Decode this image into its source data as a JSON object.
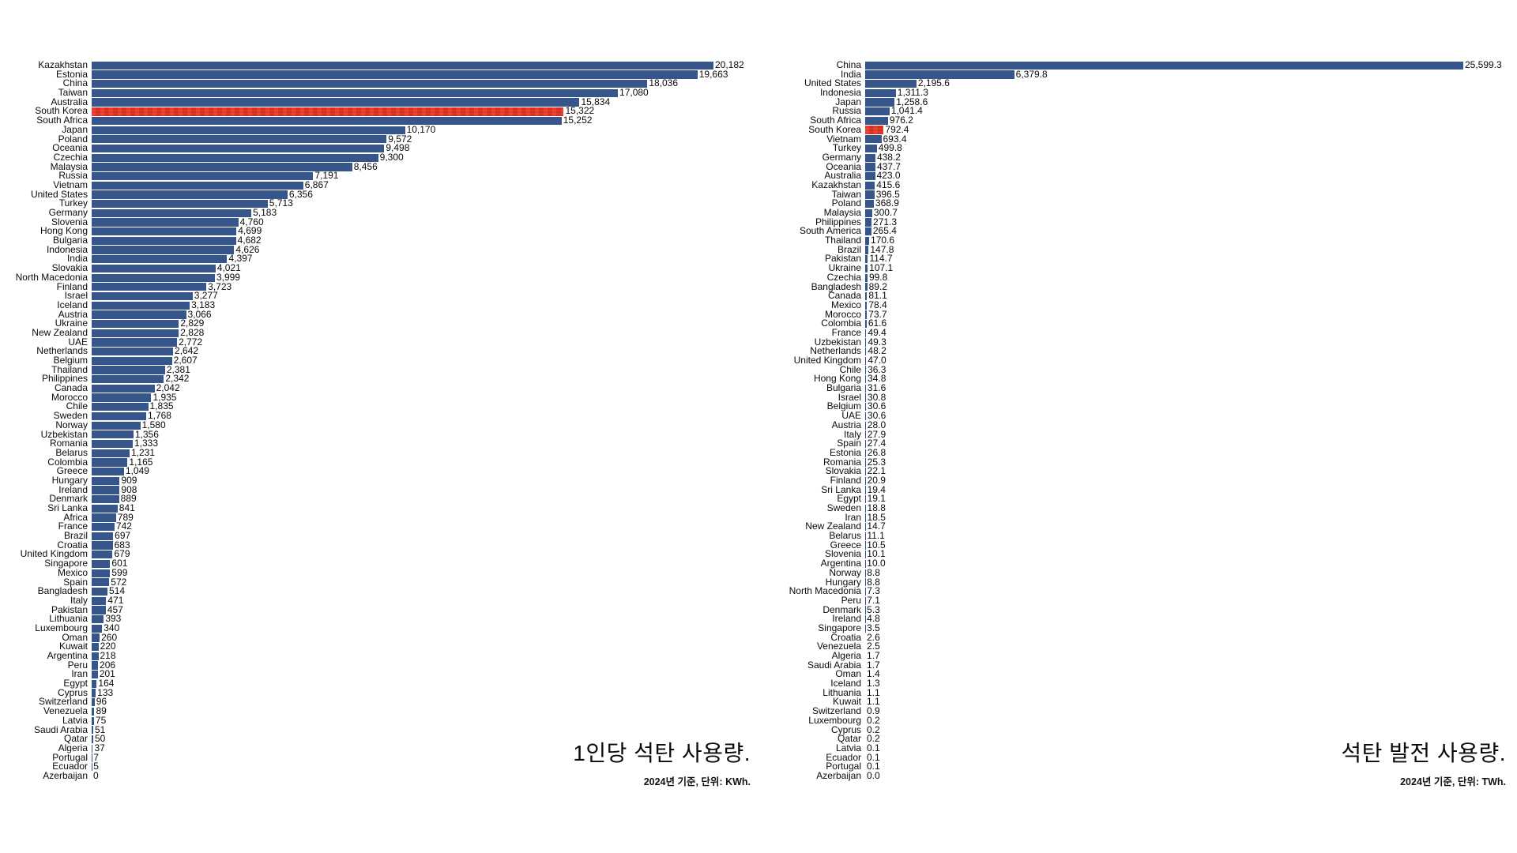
{
  "chart_data": [
    {
      "type": "bar",
      "orientation": "horizontal",
      "title": "1인당 석탄 사용량.",
      "subtitle": "2024년 기준, 단위: KWh.",
      "unit": "KWh",
      "xlim": [
        0,
        20182
      ],
      "grid": false,
      "legend": "none",
      "bar_color": "#36568b",
      "highlight": "South Korea",
      "highlight_color": "#de3a2b",
      "categories": [
        "Kazakhstan",
        "Estonia",
        "China",
        "Taiwan",
        "Australia",
        "South Korea",
        "South Africa",
        "Japan",
        "Poland",
        "Oceania",
        "Czechia",
        "Malaysia",
        "Russia",
        "Vietnam",
        "United States",
        "Turkey",
        "Germany",
        "Slovenia",
        "Hong Kong",
        "Bulgaria",
        "Indonesia",
        "India",
        "Slovakia",
        "North Macedonia",
        "Finland",
        "Israel",
        "Iceland",
        "Austria",
        "Ukraine",
        "New Zealand",
        "UAE",
        "Netherlands",
        "Belgium",
        "Thailand",
        "Philippines",
        "Canada",
        "Morocco",
        "Chile",
        "Sweden",
        "Norway",
        "Uzbekistan",
        "Romania",
        "Belarus",
        "Colombia",
        "Greece",
        "Hungary",
        "Ireland",
        "Denmark",
        "Sri Lanka",
        "Africa",
        "France",
        "Brazil",
        "Croatia",
        "United Kingdom",
        "Singapore",
        "Mexico",
        "Spain",
        "Bangladesh",
        "Italy",
        "Pakistan",
        "Lithuania",
        "Luxembourg",
        "Oman",
        "Kuwait",
        "Argentina",
        "Peru",
        "Iran",
        "Egypt",
        "Cyprus",
        "Switzerland",
        "Venezuela",
        "Latvia",
        "Saudi Arabia",
        "Qatar",
        "Algeria",
        "Portugal",
        "Ecuador",
        "Azerbaijan"
      ],
      "values": [
        20182,
        19663,
        18036,
        17080,
        15834,
        15322,
        15252,
        10170,
        9572,
        9498,
        9300,
        8456,
        7191,
        6867,
        6356,
        5713,
        5183,
        4760,
        4699,
        4682,
        4626,
        4397,
        4021,
        3999,
        3723,
        3277,
        3183,
        3066,
        2829,
        2828,
        2772,
        2642,
        2607,
        2381,
        2342,
        2042,
        1935,
        1835,
        1768,
        1580,
        1356,
        1333,
        1231,
        1165,
        1049,
        909,
        908,
        889,
        841,
        789,
        742,
        697,
        683,
        679,
        601,
        599,
        572,
        514,
        471,
        457,
        393,
        340,
        260,
        220,
        218,
        206,
        201,
        164,
        133,
        96,
        89,
        75,
        51,
        50,
        37,
        7,
        5,
        0
      ],
      "value_labels": [
        "20,182",
        "19,663",
        "18,036",
        "17,080",
        "15,834",
        "15,322",
        "15,252",
        "10,170",
        "9,572",
        "9,498",
        "9,300",
        "8,456",
        "7,191",
        "6,867",
        "6,356",
        "5,713",
        "5,183",
        "4,760",
        "4,699",
        "4,682",
        "4,626",
        "4,397",
        "4,021",
        "3,999",
        "3,723",
        "3,277",
        "3,183",
        "3,066",
        "2,829",
        "2,828",
        "2,772",
        "2,642",
        "2,607",
        "2,381",
        "2,342",
        "2,042",
        "1,935",
        "1,835",
        "1,768",
        "1,580",
        "1,356",
        "1,333",
        "1,231",
        "1,165",
        "1,049",
        "909",
        "908",
        "889",
        "841",
        "789",
        "742",
        "697",
        "683",
        "679",
        "601",
        "599",
        "572",
        "514",
        "471",
        "457",
        "393",
        "340",
        "260",
        "220",
        "218",
        "206",
        "201",
        "164",
        "133",
        "96",
        "89",
        "75",
        "51",
        "50",
        "37",
        "7",
        "5",
        "0"
      ]
    },
    {
      "type": "bar",
      "orientation": "horizontal",
      "title": "석탄 발전 사용량.",
      "subtitle": "2024년 기준, 단위: TWh.",
      "unit": "TWh",
      "xlim": [
        0,
        25599.3
      ],
      "grid": false,
      "legend": "none",
      "bar_color": "#36568b",
      "highlight": "South Korea",
      "highlight_color": "#de3a2b",
      "categories": [
        "China",
        "India",
        "United States",
        "Indonesia",
        "Japan",
        "Russia",
        "South Africa",
        "South Korea",
        "Vietnam",
        "Turkey",
        "Germany",
        "Oceania",
        "Australia",
        "Kazakhstan",
        "Taiwan",
        "Poland",
        "Malaysia",
        "Philippines",
        "South America",
        "Thailand",
        "Brazil",
        "Pakistan",
        "Ukraine",
        "Czechia",
        "Bangladesh",
        "Canada",
        "Mexico",
        "Morocco",
        "Colombia",
        "France",
        "Uzbekistan",
        "Netherlands",
        "United Kingdom",
        "Chile",
        "Hong Kong",
        "Bulgaria",
        "Israel",
        "Belgium",
        "UAE",
        "Austria",
        "Italy",
        "Spain",
        "Estonia",
        "Romania",
        "Slovakia",
        "Finland",
        "Sri Lanka",
        "Egypt",
        "Sweden",
        "Iran",
        "New Zealand",
        "Belarus",
        "Greece",
        "Slovenia",
        "Argentina",
        "Norway",
        "Hungary",
        "North Macedonia",
        "Peru",
        "Denmark",
        "Ireland",
        "Singapore",
        "Croatia",
        "Venezuela",
        "Algeria",
        "Saudi Arabia",
        "Oman",
        "Iceland",
        "Lithuania",
        "Kuwait",
        "Switzerland",
        "Luxembourg",
        "Cyprus",
        "Qatar",
        "Latvia",
        "Ecuador",
        "Portugal",
        "Azerbaijan"
      ],
      "values": [
        25599.3,
        6379.8,
        2195.6,
        1311.3,
        1258.6,
        1041.4,
        976.2,
        792.4,
        693.4,
        499.8,
        438.2,
        437.7,
        423.0,
        415.6,
        396.5,
        368.9,
        300.7,
        271.3,
        265.4,
        170.6,
        147.8,
        114.7,
        107.1,
        99.8,
        89.2,
        81.1,
        78.4,
        73.7,
        61.6,
        49.4,
        49.3,
        48.2,
        47.0,
        36.3,
        34.8,
        31.6,
        30.8,
        30.6,
        30.6,
        28.0,
        27.9,
        27.4,
        26.8,
        25.3,
        22.1,
        20.9,
        19.4,
        19.1,
        18.8,
        18.5,
        14.7,
        11.1,
        10.5,
        10.1,
        10.0,
        8.8,
        8.8,
        7.3,
        7.1,
        5.3,
        4.8,
        3.5,
        2.6,
        2.5,
        1.7,
        1.7,
        1.4,
        1.3,
        1.1,
        1.1,
        0.9,
        0.2,
        0.2,
        0.2,
        0.1,
        0.1,
        0.1,
        0.0
      ],
      "value_labels": [
        "25,599.3",
        "6,379.8",
        "2,195.6",
        "1,311.3",
        "1,258.6",
        "1,041.4",
        "976.2",
        "792.4",
        "693.4",
        "499.8",
        "438.2",
        "437.7",
        "423.0",
        "415.6",
        "396.5",
        "368.9",
        "300.7",
        "271.3",
        "265.4",
        "170.6",
        "147.8",
        "114.7",
        "107.1",
        "99.8",
        "89.2",
        "81.1",
        "78.4",
        "73.7",
        "61.6",
        "49.4",
        "49.3",
        "48.2",
        "47.0",
        "36.3",
        "34.8",
        "31.6",
        "30.8",
        "30.6",
        "30.6",
        "28.0",
        "27.9",
        "27.4",
        "26.8",
        "25.3",
        "22.1",
        "20.9",
        "19.4",
        "19.1",
        "18.8",
        "18.5",
        "14.7",
        "11.1",
        "10.5",
        "10.1",
        "10.0",
        "8.8",
        "8.8",
        "7.3",
        "7.1",
        "5.3",
        "4.8",
        "3.5",
        "2.6",
        "2.5",
        "1.7",
        "1.7",
        "1.4",
        "1.3",
        "1.1",
        "1.1",
        "0.9",
        "0.2",
        "0.2",
        "0.2",
        "0.1",
        "0.1",
        "0.1",
        "0.0"
      ]
    }
  ]
}
